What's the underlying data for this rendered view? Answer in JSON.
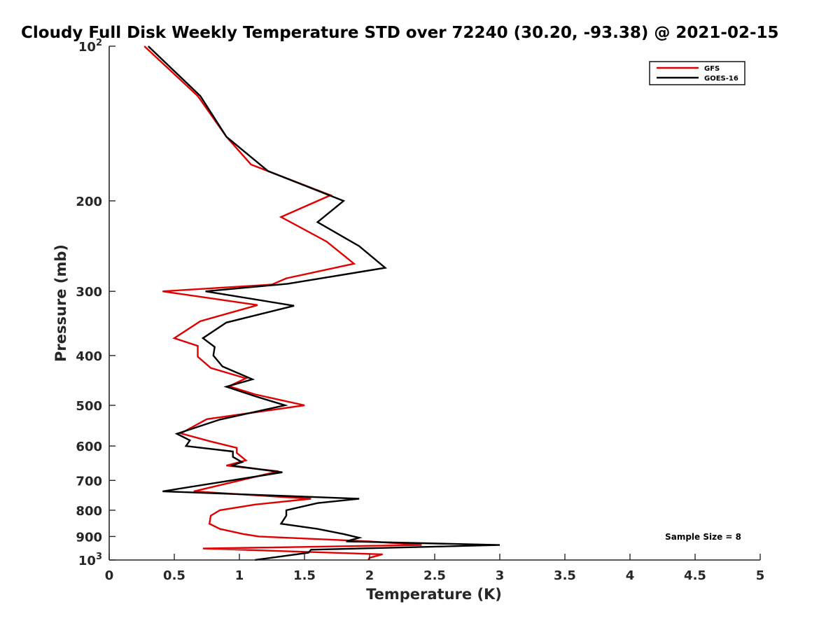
{
  "chart_data": {
    "type": "line",
    "title": "Cloudy Full Disk Weekly Temperature STD over 72240 (30.20, -93.38) @ 2021-02-15",
    "xlabel": "Temperature (K)",
    "ylabel": "Pressure (mb)",
    "xlim": [
      0,
      5
    ],
    "ylim": [
      100,
      1000
    ],
    "yscale": "log",
    "y_reversed": true,
    "x_ticks": [
      0,
      0.5,
      1,
      1.5,
      2,
      2.5,
      3,
      3.5,
      4,
      4.5,
      5
    ],
    "x_tick_labels": [
      "0",
      "0.5",
      "1",
      "1.5",
      "2",
      "2.5",
      "3",
      "3.5",
      "4",
      "4.5",
      "5"
    ],
    "y_ticks": [
      100,
      200,
      300,
      400,
      500,
      600,
      700,
      800,
      900,
      1000
    ],
    "y_tick_labels": [
      {
        "base": "10",
        "exp": "2"
      },
      {
        "base": "200"
      },
      {
        "base": "300"
      },
      {
        "base": "400"
      },
      {
        "base": "500"
      },
      {
        "base": "600"
      },
      {
        "base": "700"
      },
      {
        "base": "800"
      },
      {
        "base": "900"
      },
      {
        "base": "10",
        "exp": "3"
      }
    ],
    "legend_location": "top-right",
    "annotation": "Sample Size = 8",
    "series": [
      {
        "name": "GFS",
        "color": "#e00000",
        "points": [
          [
            0.27,
            100
          ],
          [
            0.68,
            125
          ],
          [
            0.9,
            150
          ],
          [
            1.09,
            170
          ],
          [
            1.7,
            195
          ],
          [
            1.32,
            215
          ],
          [
            1.67,
            240
          ],
          [
            1.88,
            265
          ],
          [
            1.36,
            283
          ],
          [
            1.25,
            291
          ],
          [
            0.41,
            300
          ],
          [
            1.14,
            319
          ],
          [
            0.7,
            343
          ],
          [
            0.5,
            370
          ],
          [
            0.68,
            383
          ],
          [
            0.68,
            402
          ],
          [
            0.78,
            423
          ],
          [
            1.05,
            443
          ],
          [
            0.92,
            459
          ],
          [
            1.12,
            476
          ],
          [
            1.5,
            500
          ],
          [
            0.75,
            532
          ],
          [
            0.55,
            567
          ],
          [
            0.78,
            588
          ],
          [
            0.98,
            605
          ],
          [
            0.98,
            619
          ],
          [
            1.05,
            640
          ],
          [
            0.9,
            655
          ],
          [
            1.3,
            672
          ],
          [
            0.65,
            735
          ],
          [
            1.55,
            760
          ],
          [
            1.12,
            780
          ],
          [
            0.85,
            800
          ],
          [
            0.78,
            820
          ],
          [
            0.77,
            850
          ],
          [
            0.85,
            870
          ],
          [
            1.03,
            890
          ],
          [
            1.15,
            900
          ],
          [
            2.0,
            920
          ],
          [
            2.4,
            935
          ],
          [
            0.72,
            950
          ],
          [
            2.1,
            975
          ],
          [
            2.0,
            990
          ],
          [
            1.99,
            1000
          ]
        ]
      },
      {
        "name": "GOES-16",
        "color": "#000000",
        "points": [
          [
            0.3,
            100
          ],
          [
            0.7,
            125
          ],
          [
            0.9,
            150
          ],
          [
            1.22,
            175
          ],
          [
            1.8,
            200
          ],
          [
            1.6,
            220
          ],
          [
            1.92,
            245
          ],
          [
            2.12,
            270
          ],
          [
            1.37,
            290
          ],
          [
            0.74,
            300
          ],
          [
            1.42,
            320
          ],
          [
            0.9,
            345
          ],
          [
            0.72,
            370
          ],
          [
            0.81,
            385
          ],
          [
            0.8,
            400
          ],
          [
            0.87,
            420
          ],
          [
            1.1,
            445
          ],
          [
            0.9,
            460
          ],
          [
            1.12,
            480
          ],
          [
            1.35,
            500
          ],
          [
            0.85,
            533
          ],
          [
            0.52,
            568
          ],
          [
            0.62,
            585
          ],
          [
            0.59,
            600
          ],
          [
            0.95,
            615
          ],
          [
            0.95,
            630
          ],
          [
            1.02,
            645
          ],
          [
            0.94,
            655
          ],
          [
            1.33,
            675
          ],
          [
            0.41,
            735
          ],
          [
            1.92,
            760
          ],
          [
            1.6,
            775
          ],
          [
            1.36,
            800
          ],
          [
            1.36,
            820
          ],
          [
            1.32,
            850
          ],
          [
            1.6,
            870
          ],
          [
            1.8,
            890
          ],
          [
            1.92,
            905
          ],
          [
            1.82,
            920
          ],
          [
            3.0,
            935
          ],
          [
            1.55,
            955
          ],
          [
            1.53,
            968
          ],
          [
            1.12,
            1000
          ]
        ]
      }
    ]
  }
}
